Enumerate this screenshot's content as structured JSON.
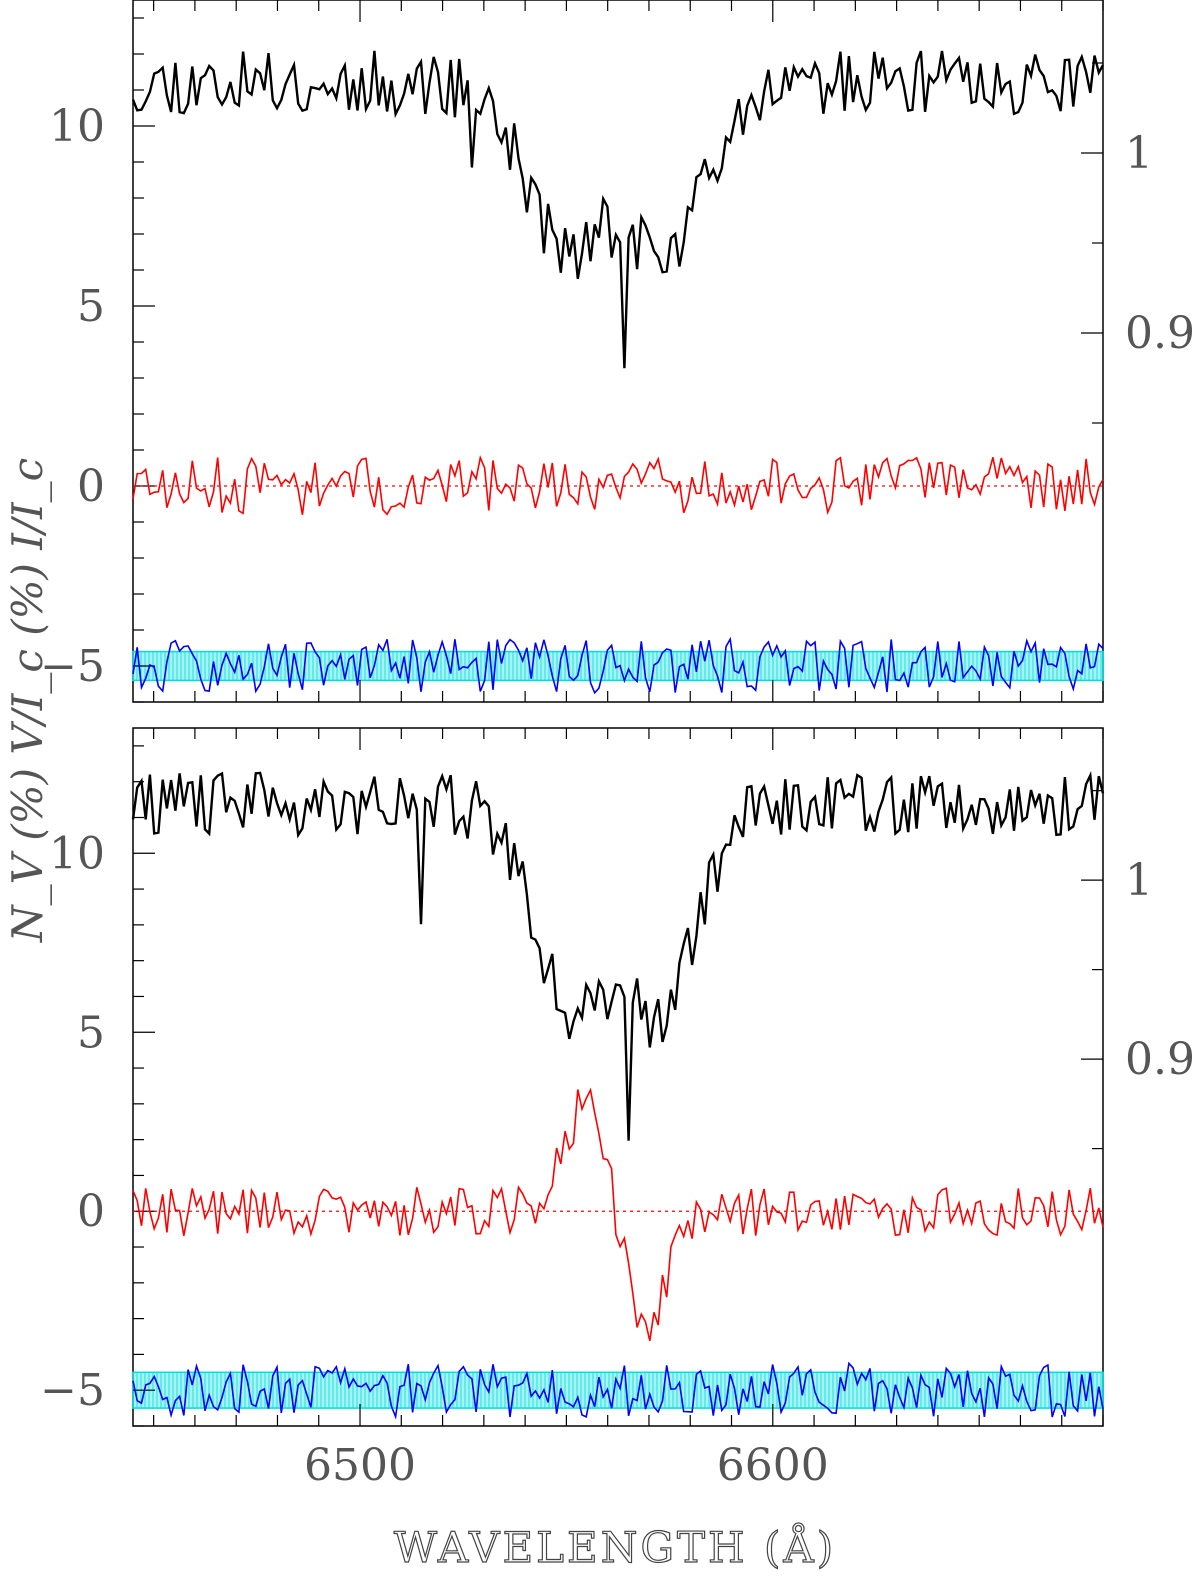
{
  "x_label": "WAVELENGTH (Å)",
  "y_label_left": "N_V (%)    V/I_c (%)    I/I_c",
  "colors": {
    "stokes_i": "#000000",
    "stokes_v": "#ff0000",
    "null_n": "#0000ff",
    "null_band": "#00dddd",
    "zero_line": "#ff0000"
  },
  "chart_data": [
    {
      "type": "line",
      "panel": "top",
      "xlim": [
        6445,
        6680
      ],
      "ylim": [
        -6,
        13.5
      ],
      "x_ticks": [
        6500,
        6600
      ],
      "x_tick_labels": [
        "",
        ""
      ],
      "y_ticks_left": [
        -5,
        0,
        5,
        10
      ],
      "y_tick_labels_left": [
        "−5",
        "0",
        "5",
        "10"
      ],
      "y_ticks_right_intensity": [
        0.9,
        1
      ],
      "y_tick_labels_right": [
        "0.9",
        "1"
      ],
      "intensity_axis": {
        "value_at_left_0": 0.815,
        "value_at_left_10": 1.015
      },
      "stokes_i_profile": {
        "continuum": 11.2,
        "components": [
          {
            "center": 6549,
            "depth": 3.6,
            "width": 13
          },
          {
            "center": 6575,
            "depth": 3.8,
            "width": 12
          },
          {
            "center": 6562,
            "depth": 1.5,
            "width": 20
          }
        ],
        "noise_amplitude": 0.9,
        "extra_dips": [
          {
            "x": 6527,
            "depth": 2.0
          },
          {
            "x": 6564,
            "depth": 3.5
          }
        ]
      },
      "stokes_v_profile": {
        "offset": 0,
        "amplitude": 0,
        "center": 6562,
        "width": 8,
        "noise_amplitude": 0.8
      },
      "null_profile": {
        "offset": -5,
        "noise_amplitude": 0.75,
        "band": [
          -5.4,
          -4.6
        ]
      },
      "n_points": 230,
      "seed": 11
    },
    {
      "type": "line",
      "panel": "bottom",
      "xlim": [
        6445,
        6680
      ],
      "ylim": [
        -6,
        13.5
      ],
      "x_ticks": [
        6500,
        6600
      ],
      "x_tick_labels": [
        "6500",
        "6600"
      ],
      "y_ticks_left": [
        -5,
        0,
        5,
        10
      ],
      "y_tick_labels_left": [
        "−5",
        "0",
        "5",
        "10"
      ],
      "y_ticks_right_intensity": [
        0.9,
        1
      ],
      "y_tick_labels_right": [
        "0.9",
        "1"
      ],
      "intensity_axis": {
        "value_at_left_0": 0.815,
        "value_at_left_10": 1.015
      },
      "stokes_i_profile": {
        "continuum": 11.4,
        "components": [
          {
            "center": 6551,
            "depth": 4.4,
            "width": 13
          },
          {
            "center": 6574,
            "depth": 4.4,
            "width": 12
          },
          {
            "center": 6562,
            "depth": 1.8,
            "width": 18
          }
        ],
        "noise_amplitude": 0.9,
        "extra_dips": [
          {
            "x": 6515,
            "depth": 3.0
          },
          {
            "x": 6565,
            "depth": 3.0
          }
        ]
      },
      "stokes_v_profile": {
        "offset": 0,
        "amplitude": 3.3,
        "center": 6562,
        "width": 10,
        "noise_amplitude": 0.7
      },
      "null_profile": {
        "offset": -5,
        "noise_amplitude": 0.75,
        "band": [
          -5.5,
          -4.5
        ]
      },
      "n_points": 230,
      "seed": 29
    }
  ]
}
